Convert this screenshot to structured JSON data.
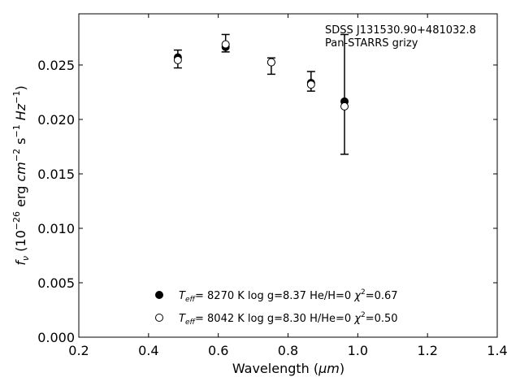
{
  "chart_data": {
    "type": "scatter",
    "xlabel_main": "Wavelength (",
    "xlabel_unit": "μm",
    "xlabel_end": ")",
    "ylabel": {
      "f": "f",
      "sub": "ν",
      "open": " (10",
      "exp1": "−26",
      "erg": " erg ",
      "cm": "cm",
      "exp2": "−2",
      "s": " s",
      "exp3": "−1",
      "hz": " Hz",
      "exp4": "−1",
      "close": ")"
    },
    "xlim": [
      0.2,
      1.4
    ],
    "ylim": [
      0.0,
      0.0297
    ],
    "xticks": [
      0.2,
      0.4,
      0.6,
      0.8,
      1.0,
      1.2,
      1.4
    ],
    "xtick_labels": [
      "0.2",
      "0.4",
      "0.6",
      "0.8",
      "1.0",
      "1.2",
      "1.4"
    ],
    "yticks": [
      0.0,
      0.005,
      0.01,
      0.015,
      0.02,
      0.025
    ],
    "ytick_labels": [
      "0.000",
      "0.005",
      "0.010",
      "0.015",
      "0.020",
      "0.025"
    ],
    "annotation": [
      "SDSS J131530.90+481032.8",
      "Pan-STARRS grizy"
    ],
    "observed": {
      "x": [
        0.484,
        0.621,
        0.752,
        0.866,
        0.962
      ],
      "y": [
        0.02555,
        0.027,
        0.0249,
        0.0235,
        0.0223
      ],
      "err": [
        0.00082,
        0.0008,
        0.00075,
        0.0009,
        0.0055
      ]
    },
    "series": [
      {
        "marker": "filled",
        "x": [
          0.484,
          0.621,
          0.752,
          0.866,
          0.962
        ],
        "y": [
          0.0257,
          0.02665,
          0.02525,
          0.02335,
          0.02165
        ],
        "legend": {
          "T": "T",
          "eff": "eff",
          "rest": "=  8270 K  log g=8.37  He/H=0  ",
          "chi": "χ",
          "chi_exp": "2",
          "chi_val": "=0.67"
        }
      },
      {
        "marker": "open",
        "x": [
          0.484,
          0.621,
          0.752,
          0.866,
          0.962
        ],
        "y": [
          0.02545,
          0.0269,
          0.02525,
          0.0232,
          0.0212
        ],
        "legend": {
          "T": "T",
          "eff": "eff",
          "rest": "=  8042 K  log g=8.30  H/He=0  ",
          "chi": "χ",
          "chi_exp": "2",
          "chi_val": "=0.50"
        }
      }
    ]
  }
}
